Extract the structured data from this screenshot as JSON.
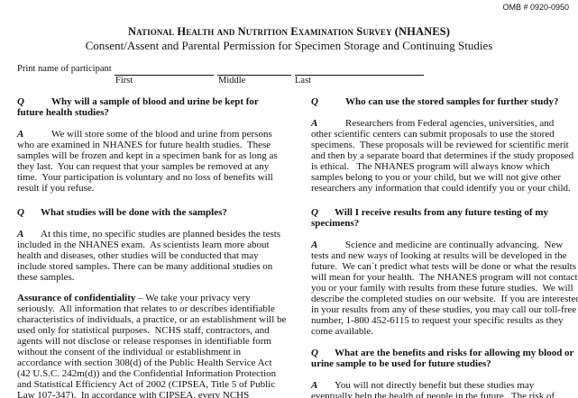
{
  "omb": "OMB # 0920-0950",
  "title": "National Health and Nutrition Examination Survey (NHANES)",
  "subtitle": "Consent/Assent and Parental Permission for Specimen Storage and Continuing Studies",
  "name_field": {
    "label": "Print name of participant",
    "first": "First",
    "middle": "Middle",
    "last": "Last"
  },
  "left": [
    {
      "type": "q",
      "mark": "Q",
      "lines": [
        "Why will a sample of blood and urine be kept for",
        "future health studies?"
      ]
    },
    {
      "type": "a",
      "mark": "A",
      "lines": [
        "We will store some of the blood and urine from persons",
        "who are examined in NHANES for future health studies.  These",
        "samples will be frozen and kept in a specimen bank for as long as",
        "they last.  You can request that your samples be removed at any",
        "time.  Your participation is voluntary and no loss of benefits will",
        "result if you refuse."
      ]
    },
    {
      "type": "q",
      "mark": "Q",
      "lines": [
        "What studies will be done with the samples?"
      ]
    },
    {
      "type": "a",
      "mark": "A",
      "lines": [
        "At this time, no specific studies are planned besides the tests",
        "included in the NHANES exam.  As scientists learn more about",
        "health and diseases, other studies will be conducted that may",
        "include stored samples. There can be many additional studies on",
        "these samples."
      ]
    },
    {
      "type": "p",
      "heading": "Assurance of confidentiality",
      "lines": [
        " – We take your privacy very",
        "seriously.  All information that relates to or describes identifiable",
        "characteristics of individuals, a practice, or an establishment will be",
        "used only for statistical purposes.  NCHS staff, contractors, and",
        "agents will not disclose or release responses in identifiable form",
        "without the consent of the individual or establishment in",
        "accordance with section 308(d) of the Public Health Service Act",
        "(42 U.S.C. 242m(d)) and the Confidential Information Protection",
        "and Statistical Efficiency Act of 2002 (CIPSEA, Title 5 of Public",
        "Law 107-347).  In accordance with CIPSEA, every NCHS"
      ]
    }
  ],
  "right": [
    {
      "type": "q",
      "mark": "Q",
      "lines": [
        "Who can use the stored samples for further study?"
      ]
    },
    {
      "type": "a",
      "mark": "A",
      "lines": [
        "Researchers from Federal agencies, universities, and",
        "other scientific centers can submit proposals to use the stored",
        "specimens.  These proposals will be reviewed for scientific merit",
        "and then by a separate board that determines if the study proposed",
        "is ethical.   The NHANES program will always know which",
        "samples belong to you or your child, but we will not give other",
        "researchers any information that could identify you or your child."
      ]
    },
    {
      "type": "q",
      "mark": "Q",
      "lines": [
        "Will I receive results from any future testing of my",
        "specimens?"
      ]
    },
    {
      "type": "a",
      "mark": "A",
      "lines": [
        "Science and medicine are continually advancing.  New",
        "tests and new ways of looking at results will be developed in the",
        "future.  We can`t predict what tests will be done or what the results",
        "will mean for your health.  The NHANES program will not contact",
        "you or your family with results from these future studies.  We will",
        "describe the completed studies on our website.  If you are interested",
        "in your results from any of these studies, you may call our toll-free",
        "number, 1-800 452-6115 to request your specific results as they",
        "come available."
      ]
    },
    {
      "type": "q",
      "mark": "Q",
      "lines": [
        "What are the benefits and risks for allowing my blood or",
        "urine sample to be used for future studies?"
      ]
    },
    {
      "type": "a",
      "mark": "A",
      "lines": [
        "You will not directly benefit but these studies may",
        "eventually help the health of people in the future.  The risk of"
      ]
    }
  ]
}
